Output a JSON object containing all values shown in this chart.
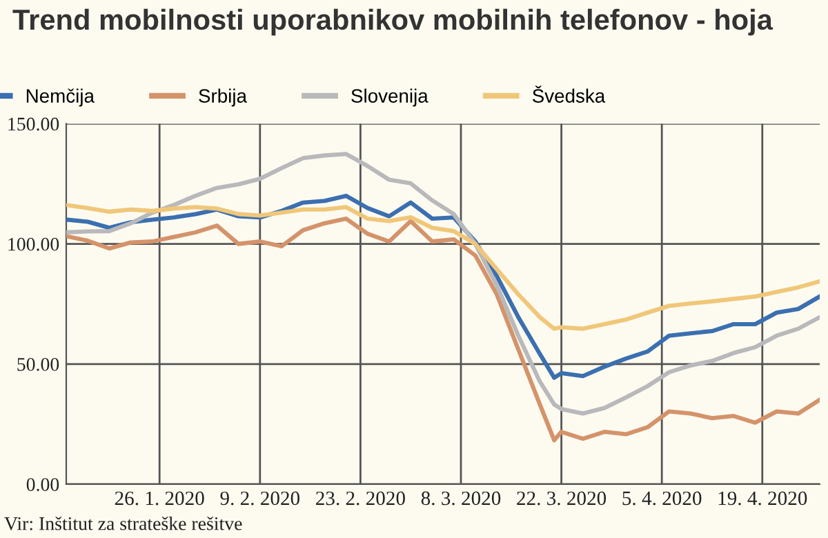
{
  "chart_data": {
    "type": "line",
    "title": "Trend mobilnosti uporabnikov mobilnih telefonov - hoja",
    "x": [
      "2020-01-13",
      "2020-01-16",
      "2020-01-19",
      "2020-01-22",
      "2020-01-25",
      "2020-01-28",
      "2020-01-31",
      "2020-02-03",
      "2020-02-06",
      "2020-02-09",
      "2020-02-12",
      "2020-02-15",
      "2020-02-18",
      "2020-02-21",
      "2020-02-24",
      "2020-02-27",
      "2020-03-01",
      "2020-03-04",
      "2020-03-07",
      "2020-03-10",
      "2020-03-13",
      "2020-03-16",
      "2020-03-19",
      "2020-03-21",
      "2020-03-22",
      "2020-03-25",
      "2020-03-28",
      "2020-03-31",
      "2020-04-03",
      "2020-04-06",
      "2020-04-09",
      "2020-04-12",
      "2020-04-15",
      "2020-04-18",
      "2020-04-21",
      "2020-04-24",
      "2020-04-27"
    ],
    "series": [
      {
        "name": "Nemčija",
        "color": "#3b6fb0",
        "values": [
          110.1,
          109.2,
          106.7,
          109,
          110.1,
          111,
          112.4,
          114.3,
          111.5,
          111,
          113.7,
          117.2,
          117.9,
          120,
          114.9,
          111.5,
          117.2,
          110.5,
          111,
          101,
          86.6,
          69.5,
          54.2,
          44.3,
          46.2,
          45,
          48.9,
          52.3,
          55.2,
          61.8,
          62.8,
          63.7,
          66.6,
          66.6,
          71.4,
          72.9,
          78.1
        ]
      },
      {
        "name": "Srbija",
        "color": "#d4936b",
        "values": [
          103.2,
          101.3,
          98.1,
          100.6,
          101,
          102.9,
          104.8,
          107.6,
          100,
          101,
          99,
          105.7,
          108.6,
          110.5,
          104.2,
          101,
          109.5,
          101,
          101.9,
          95.2,
          79,
          56.1,
          33.2,
          18.3,
          21.8,
          18.9,
          21.8,
          20.8,
          23.7,
          30.3,
          29.4,
          27.5,
          28.4,
          25.6,
          30.3,
          29.4,
          35.1
        ]
      },
      {
        "name": "Slovenija",
        "color": "#b9b9bb",
        "values": [
          104.8,
          105.2,
          105.3,
          108.6,
          113,
          116.2,
          120,
          123.3,
          124.8,
          127.1,
          131.5,
          135.7,
          136.8,
          137.4,
          132.4,
          126.7,
          125.2,
          118.1,
          112.4,
          100,
          82.8,
          61.8,
          42.7,
          33.2,
          31.3,
          29.4,
          31.7,
          36.1,
          40.8,
          46.6,
          49.4,
          51.3,
          54.6,
          57,
          61.8,
          64.7,
          69.5
        ]
      },
      {
        "name": "Švedska",
        "color": "#f0c77a",
        "values": [
          116.2,
          114.9,
          113.4,
          114.3,
          113.7,
          114.7,
          115.3,
          114.7,
          112.4,
          111.8,
          113,
          114.3,
          114.3,
          115.3,
          110.5,
          109.5,
          111.1,
          106.7,
          105.3,
          100,
          89.5,
          79,
          69.5,
          64.7,
          65.3,
          64.7,
          66.6,
          68.5,
          71.4,
          74.2,
          75.2,
          76.1,
          77.1,
          78.1,
          80,
          81.9,
          84.4
        ]
      }
    ],
    "xlim": [
      "2020-01-13",
      "2020-04-27"
    ],
    "xticks": [
      {
        "value": "2020-01-26",
        "label": "26. 1. 2020"
      },
      {
        "value": "2020-02-09",
        "label": "9. 2. 2020"
      },
      {
        "value": "2020-02-23",
        "label": "23. 2. 2020"
      },
      {
        "value": "2020-03-08",
        "label": "8. 3. 2020"
      },
      {
        "value": "2020-03-22",
        "label": "22. 3. 2020"
      },
      {
        "value": "2020-04-05",
        "label": "5. 4. 2020"
      },
      {
        "value": "2020-04-19",
        "label": "19. 4. 2020"
      }
    ],
    "ylim": [
      0,
      150
    ],
    "yticks": [
      {
        "value": 0,
        "label": "0.00"
      },
      {
        "value": 50,
        "label": "50.00"
      },
      {
        "value": 100,
        "label": "100.00"
      },
      {
        "value": 150,
        "label": "150.00"
      }
    ],
    "grid": true,
    "legend": "top",
    "marker": "none",
    "line_style": "solid",
    "annotations": [
      "Vir: Inštitut za strateške rešitve"
    ]
  }
}
